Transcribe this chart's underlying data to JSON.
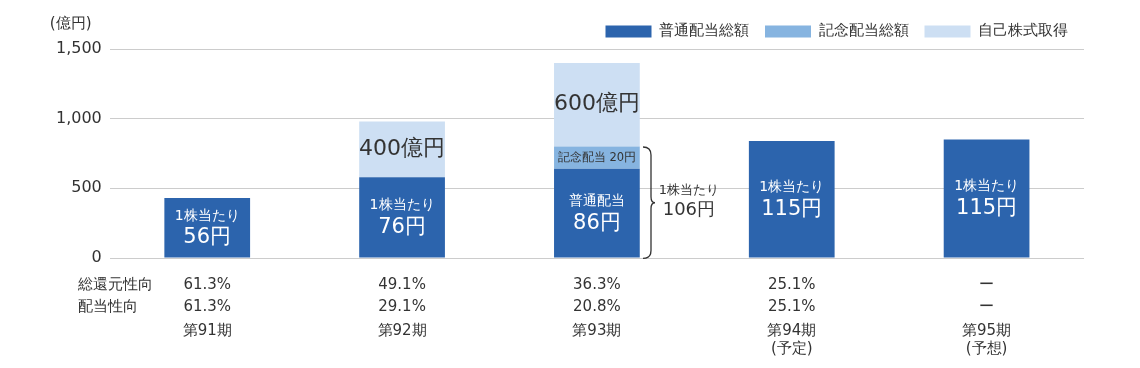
{
  "chart_data": {
    "type": "bar",
    "stacked": true,
    "ylabel": "(億円)",
    "categories": [
      "第91期",
      "第92期",
      "第93期",
      "第94期\n(予定)",
      "第95期\n(予想)"
    ],
    "series": [
      {
        "name": "普通配当総額",
        "color": "#2c64ad",
        "values": [
          430,
          580,
          640,
          840,
          850
        ]
      },
      {
        "name": "記念配当総額",
        "color": "#86b4e0",
        "values": [
          null,
          null,
          160,
          null,
          null
        ]
      },
      {
        "name": "自己株式取得",
        "color": "#cddff3",
        "values": [
          null,
          400,
          600,
          null,
          null
        ],
        "value_labels": [
          null,
          "400億円",
          "600億円",
          null,
          null
        ]
      }
    ],
    "ylim": [
      0,
      1500
    ],
    "yticks": [
      0,
      {
        "value": 500,
        "label": "500"
      },
      {
        "value": 1000,
        "label": "1,000"
      },
      {
        "value": 1500,
        "label": "1,500"
      }
    ],
    "grid": "y",
    "legend": "top right",
    "annotations": [
      "1株当たり\n56円",
      "1株当たり\n76円",
      "普通配当\n86円",
      "1株当たり\n115円",
      "1株当たり\n115円",
      {
        "text": "記念配当 20円",
        "x": "第93期",
        "y": 800
      },
      "1株当たり\n106円",
      "総還元性向",
      "61.3%",
      "49.1%",
      "36.3%",
      "25.1%",
      "ー",
      "配当性向",
      "61.3%",
      "29.1%",
      "20.8%",
      "25.1%",
      "ー"
    ]
  }
}
